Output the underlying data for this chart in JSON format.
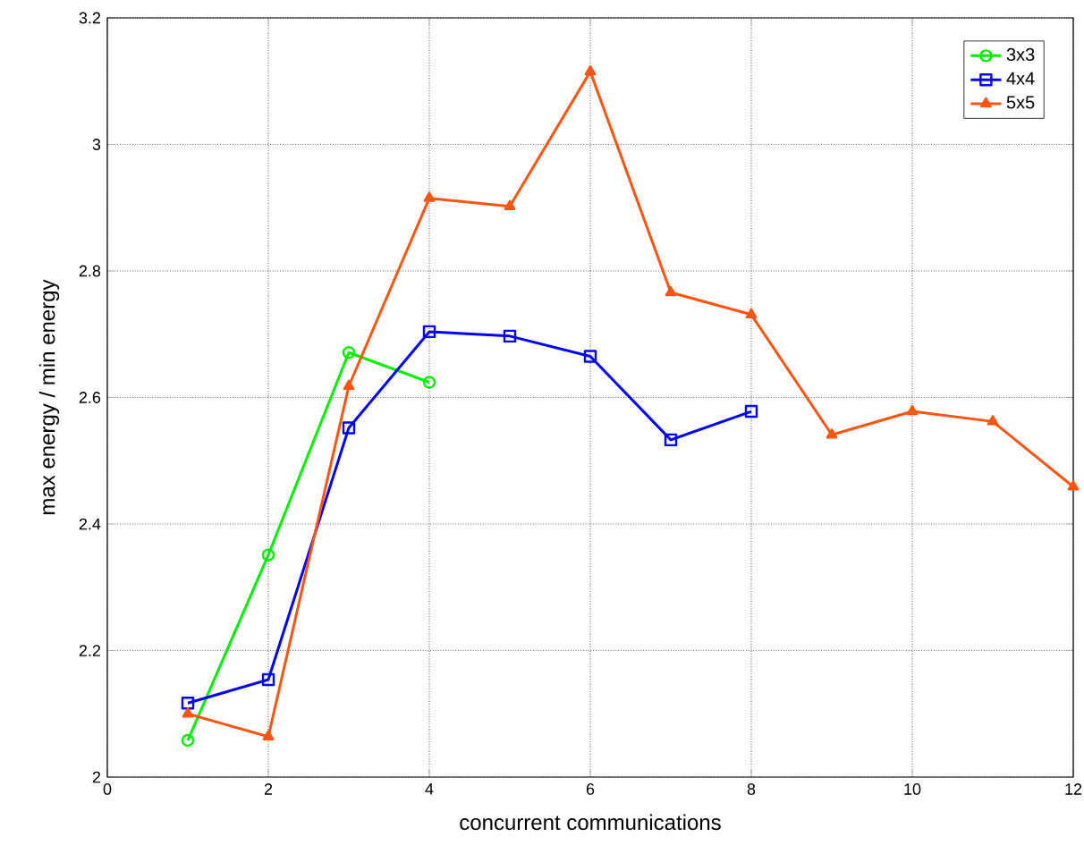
{
  "chart_data": {
    "type": "line",
    "xlabel": "concurrent communications",
    "ylabel": "max energy / min energy",
    "xlim": [
      0,
      12
    ],
    "ylim": [
      2,
      3.2
    ],
    "xticks": [
      0,
      2,
      4,
      6,
      8,
      10,
      12
    ],
    "yticks": [
      2,
      2.2,
      2.4,
      2.6,
      2.8,
      3,
      3.2
    ],
    "grid": true,
    "legend": "top right",
    "line_style": "solid",
    "series": [
      {
        "name": "3x3",
        "color": "#00ee00",
        "marker": "circle",
        "x": [
          1,
          2,
          3,
          4
        ],
        "values": [
          2.058,
          2.351,
          2.671,
          2.624
        ]
      },
      {
        "name": "4x4",
        "color": "#0000ff",
        "marker": "square",
        "x": [
          1,
          2,
          3,
          4,
          5,
          6,
          7,
          8
        ],
        "values": [
          2.117,
          2.154,
          2.552,
          2.704,
          2.697,
          2.665,
          2.533,
          2.578
        ]
      },
      {
        "name": "5x5",
        "color": "#ff5511",
        "marker": "triangle",
        "x": [
          1,
          2,
          3,
          4,
          5,
          6,
          7,
          8,
          9,
          10,
          11,
          12
        ],
        "values": [
          2.1,
          2.064,
          2.618,
          2.915,
          2.902,
          3.115,
          2.766,
          2.731,
          2.541,
          2.578,
          2.562,
          2.459
        ]
      }
    ]
  }
}
